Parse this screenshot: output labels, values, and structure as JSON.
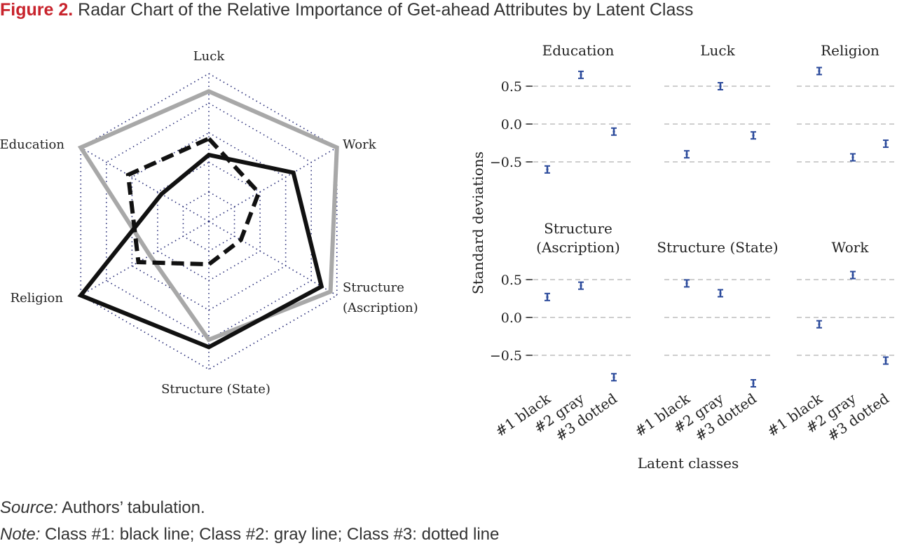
{
  "figure": {
    "label": "Figure 2.",
    "title": "Radar Chart of the Relative Importance of Get-ahead Attributes by Latent Class",
    "source_label": "Source:",
    "source_text": " Authors’ tabulation.",
    "note_label": "Note:",
    "note_text": " Class #1: black line; Class #2: gray line; Class #3: dotted line"
  },
  "chart_data": [
    {
      "type": "radar",
      "axes": [
        "Luck",
        "Work",
        "Structure (Ascription)",
        "Structure (State)",
        "Religion",
        "Education"
      ],
      "axis_labels": [
        [
          "Luck"
        ],
        [
          "Work"
        ],
        [
          "Structure",
          "(Ascription)"
        ],
        [
          "Structure (State)"
        ],
        [
          "Religion"
        ],
        [
          "Education"
        ]
      ],
      "rlim": [
        0,
        1
      ],
      "grid_rings": 5,
      "grid": "dotted",
      "series": [
        {
          "style": "black solid",
          "color": "#111111",
          "values": [
            0.45,
            0.66,
            0.88,
            0.85,
            1.0,
            0.37
          ]
        },
        {
          "style": "gray solid",
          "color": "#a8a8a8",
          "values": [
            0.88,
            1.0,
            0.95,
            0.8,
            0.46,
            1.0
          ]
        },
        {
          "style": "black dashed",
          "color": "#111111",
          "values": [
            0.56,
            0.39,
            0.25,
            0.29,
            0.55,
            0.63
          ]
        }
      ]
    },
    {
      "type": "scatter",
      "subtype": "faceted point estimates with error bars",
      "ylabel": "Standard deviations",
      "xlabel": "Latent classes",
      "categories": [
        "#1 black",
        "#2 gray",
        "#3 dotted"
      ],
      "yticks": [
        0.5,
        0.0,
        -0.5
      ],
      "ytick_labels": [
        "0.5",
        "0.0",
        "−0.5"
      ],
      "ylim": [
        -0.85,
        0.85
      ],
      "grid": "horizontal dashed",
      "point_color": "#2b4a9b",
      "panels": [
        {
          "title": [
            "Education"
          ],
          "values": [
            -0.6,
            0.65,
            -0.1
          ]
        },
        {
          "title": [
            "Luck"
          ],
          "values": [
            -0.4,
            0.5,
            -0.15
          ]
        },
        {
          "title": [
            "Religion"
          ],
          "values": [
            0.7,
            -0.44,
            -0.26
          ]
        },
        {
          "title": [
            "Structure",
            "(Ascription)"
          ],
          "values": [
            0.27,
            0.42,
            -0.79
          ]
        },
        {
          "title": [
            "Structure (State)"
          ],
          "values": [
            0.45,
            0.32,
            -0.87
          ]
        },
        {
          "title": [
            "Work"
          ],
          "values": [
            -0.09,
            0.56,
            -0.57
          ]
        }
      ]
    }
  ]
}
